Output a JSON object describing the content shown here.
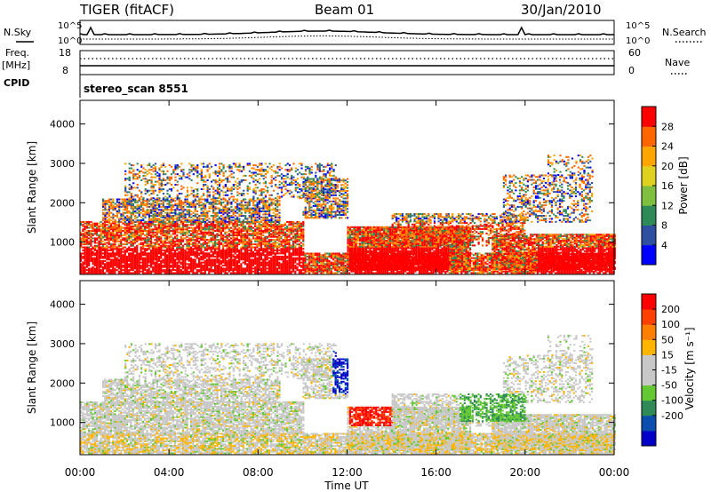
{
  "header": {
    "station": "TIGER (fitACF)",
    "beam": "Beam 01",
    "date": "30/Jan/2010"
  },
  "top_panels": {
    "nsky_label": "N.Sky",
    "nsearch_label": "N.Search",
    "noise_ticks": [
      "10^5",
      "10^0"
    ],
    "freq_label": "Freq.",
    "freq_unit": "[MHz]",
    "freq_ticks": [
      "18",
      "8"
    ],
    "nave_label": "Nave",
    "nave_ticks": [
      "60",
      "0"
    ],
    "cpid_label": "CPID",
    "cpid_value": "stereo_scan 8551"
  },
  "colors": {
    "power_scale": [
      "#0000ff",
      "#2f4fa0",
      "#2e8b57",
      "#7fbf3f",
      "#e0d020",
      "#ffa500",
      "#ff6600",
      "#ff0000"
    ],
    "velocity_scale": [
      "#0000c8",
      "#0a4fb0",
      "#2e8b57",
      "#64c832",
      "#c8c8c8",
      "#c8c8c8",
      "#ffb400",
      "#ff8000",
      "#ff4000",
      "#ff0000"
    ]
  },
  "chart_data": [
    {
      "type": "heatmap",
      "name": "power",
      "xlabel": "",
      "ylabel": "Slant Range [km]",
      "x_ticks": [
        "00:00",
        "04:00",
        "08:00",
        "12:00",
        "16:00",
        "20:00",
        "00:00"
      ],
      "y_ticks": [
        "1000",
        "2000",
        "3000",
        "4000"
      ],
      "ylim": [
        180,
        4600
      ],
      "colorbar": {
        "label": "Power [dB]",
        "ticks": [
          "4",
          "8",
          "12",
          "16",
          "20",
          "24",
          "28"
        ],
        "range": [
          0,
          32
        ]
      }
    },
    {
      "type": "heatmap",
      "name": "velocity",
      "xlabel": "Time UT",
      "ylabel": "Slant Range [km]",
      "x_ticks": [
        "00:00",
        "04:00",
        "08:00",
        "12:00",
        "16:00",
        "20:00",
        "00:00"
      ],
      "y_ticks": [
        "1000",
        "2000",
        "3000",
        "4000"
      ],
      "ylim": [
        180,
        4600
      ],
      "colorbar": {
        "label": "Velocity [m s⁻¹]",
        "ticks": [
          "200",
          "100",
          "50",
          "15",
          "-15",
          "-50",
          "-100",
          "-200"
        ]
      }
    }
  ]
}
